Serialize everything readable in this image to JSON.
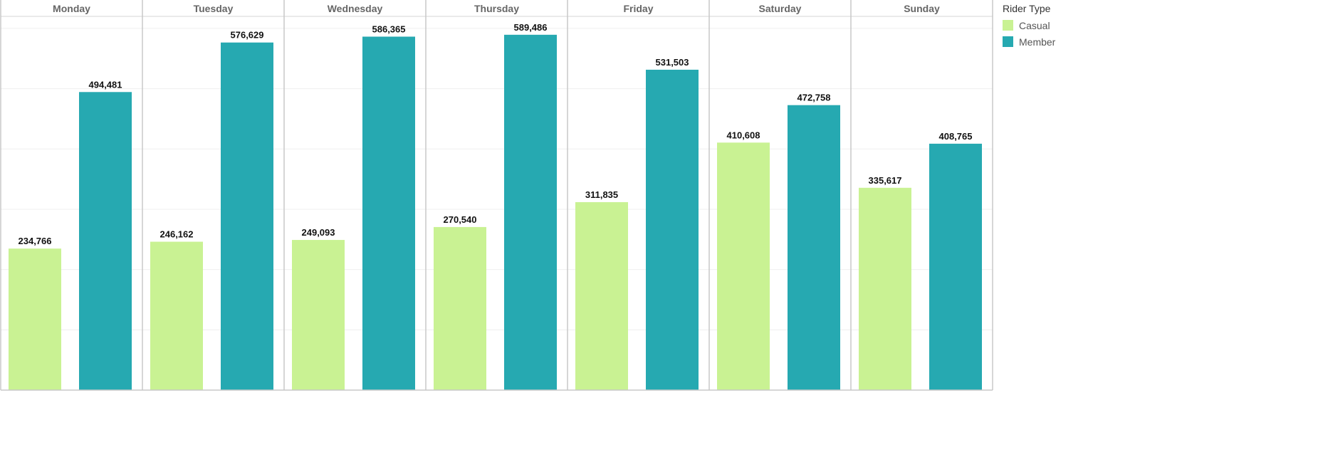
{
  "chart_data": {
    "type": "bar",
    "categories": [
      "Monday",
      "Tuesday",
      "Wednesday",
      "Thursday",
      "Friday",
      "Saturday",
      "Sunday"
    ],
    "series": [
      {
        "name": "Casual",
        "color": "#c9f293",
        "values": [
          234766,
          246162,
          249093,
          270540,
          311835,
          410608,
          335617
        ],
        "labels": [
          "234,766",
          "246,162",
          "249,093",
          "270,540",
          "311,835",
          "410,608",
          "335,617"
        ]
      },
      {
        "name": "Member",
        "color": "#26a9b1",
        "values": [
          494481,
          576629,
          586365,
          589486,
          531503,
          472758,
          408765
        ],
        "labels": [
          "494,481",
          "576,629",
          "586,365",
          "589,486",
          "531,503",
          "472,758",
          "408,765"
        ]
      }
    ],
    "legend_title": "Rider Type",
    "ylim": [
      0,
      620000
    ],
    "legend_position": "right",
    "grid": true
  }
}
